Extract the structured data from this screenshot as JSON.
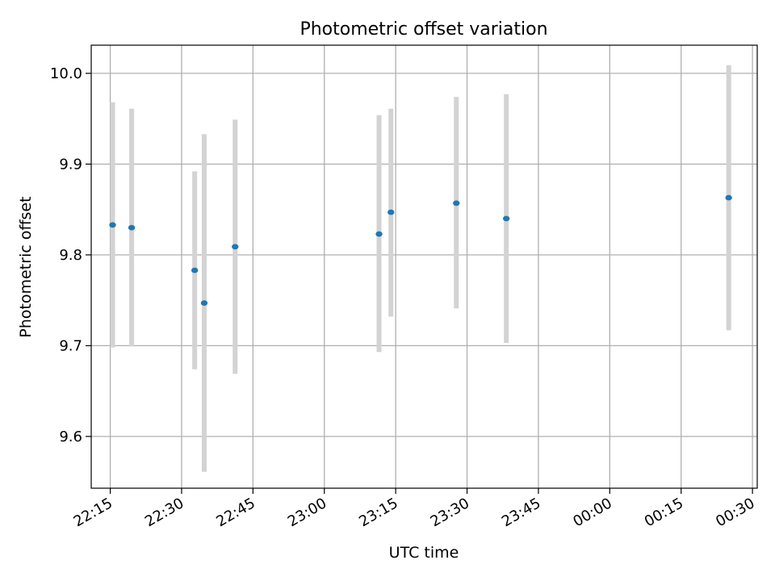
{
  "chart_data": {
    "type": "scatter",
    "title": "Photometric offset variation",
    "xlabel": "UTC time",
    "ylabel": "Photometric offset",
    "x_ticks": [
      "22:15",
      "22:30",
      "22:45",
      "23:00",
      "23:15",
      "23:30",
      "23:45",
      "00:00",
      "00:15",
      "00:30"
    ],
    "y_ticks": [
      "9.6",
      "9.7",
      "9.8",
      "9.9",
      "10.0"
    ],
    "ylim": [
      9.543,
      10.031
    ],
    "xlim": [
      "22:11",
      "00:31"
    ],
    "grid": true,
    "points": [
      {
        "x": "22:15:30",
        "y": 9.833,
        "ylow": 9.698,
        "yhigh": 9.968
      },
      {
        "x": "22:19:30",
        "y": 9.83,
        "ylow": 9.699,
        "yhigh": 9.961
      },
      {
        "x": "22:32:45",
        "y": 9.783,
        "ylow": 9.674,
        "yhigh": 9.892
      },
      {
        "x": "22:34:45",
        "y": 9.747,
        "ylow": 9.561,
        "yhigh": 9.933
      },
      {
        "x": "22:41:15",
        "y": 9.809,
        "ylow": 9.669,
        "yhigh": 9.949
      },
      {
        "x": "23:11:30",
        "y": 9.823,
        "ylow": 9.693,
        "yhigh": 9.954
      },
      {
        "x": "23:14:00",
        "y": 9.847,
        "ylow": 9.732,
        "yhigh": 9.961
      },
      {
        "x": "23:27:45",
        "y": 9.857,
        "ylow": 9.741,
        "yhigh": 9.974
      },
      {
        "x": "23:38:15",
        "y": 9.84,
        "ylow": 9.703,
        "yhigh": 9.977
      },
      {
        "x": "00:25:00",
        "y": 9.863,
        "ylow": 9.717,
        "yhigh": 10.009
      }
    ],
    "point_color": "#1f77b4",
    "errorbar_color": "#d3d3d3"
  }
}
